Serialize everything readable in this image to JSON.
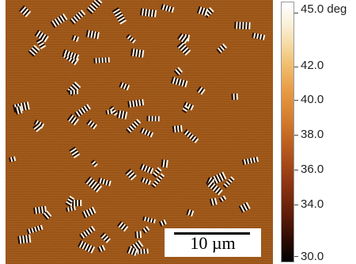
{
  "image": {
    "description_name": "afm-phase-image",
    "base_color": "#b4621c"
  },
  "scale_bar": {
    "label": "10 µm"
  },
  "colorbar": {
    "labels": [
      "45.0 deg",
      "42.0",
      "40.0",
      "38.0",
      "36.0",
      "34.0",
      "30.0"
    ],
    "colors": {
      "top": "#ffffff",
      "upper": "#f0bf70",
      "middle": "#b3551c",
      "bottom": "#000000"
    }
  }
}
